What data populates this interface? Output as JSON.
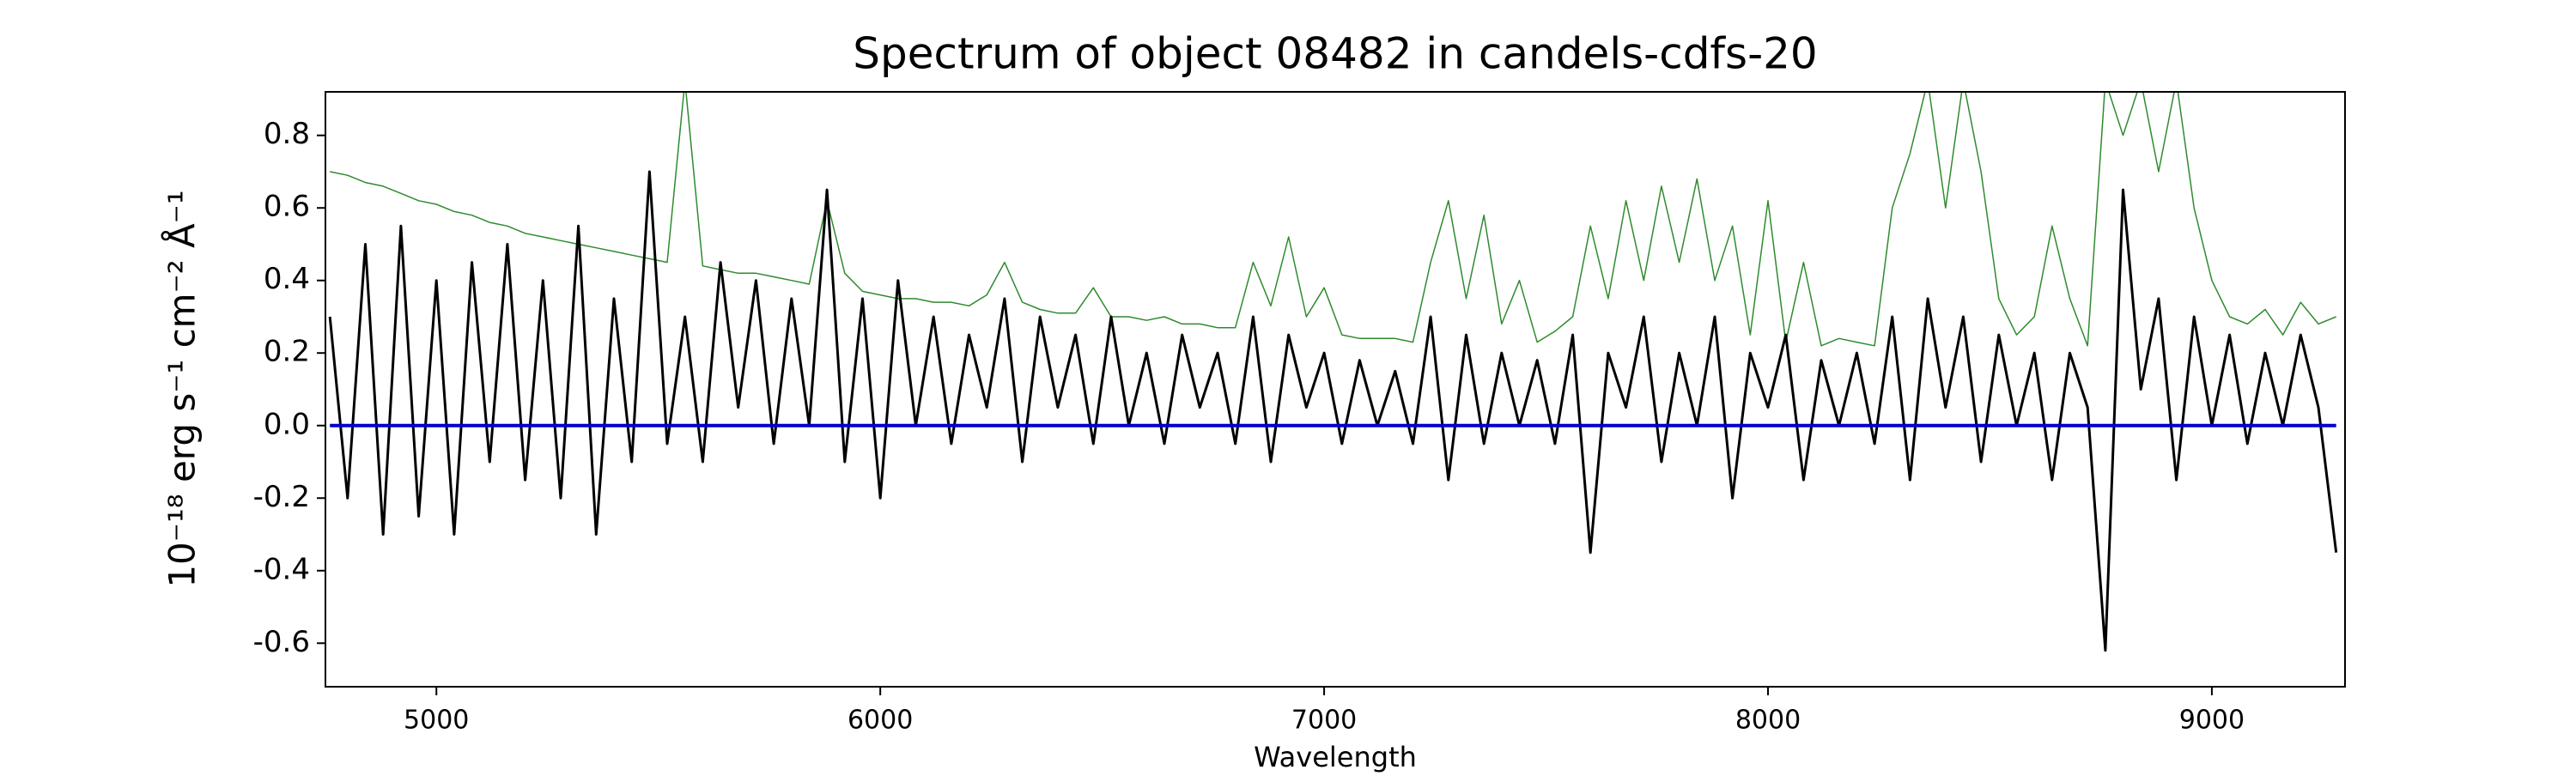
{
  "chart_data": {
    "type": "line",
    "title": "Spectrum of object 08482 in candels-cdfs-20",
    "xlabel": "Wavelength",
    "ylabel": "10⁻¹⁸ erg s⁻¹ cm⁻² Å⁻¹",
    "xlim": [
      4750,
      9300
    ],
    "ylim": [
      -0.72,
      0.92
    ],
    "xticks": [
      5000,
      6000,
      7000,
      8000,
      9000
    ],
    "yticks": [
      -0.6,
      -0.4,
      -0.2,
      {
        "value": 0,
        "label": "0.0"
      },
      0.2,
      0.4,
      0.6,
      0.8
    ],
    "grid": false,
    "x": [
      4760,
      4800,
      4840,
      4880,
      4920,
      4960,
      5000,
      5040,
      5080,
      5120,
      5160,
      5200,
      5240,
      5280,
      5320,
      5360,
      5400,
      5440,
      5480,
      5520,
      5560,
      5600,
      5640,
      5680,
      5720,
      5760,
      5800,
      5840,
      5880,
      5920,
      5960,
      6000,
      6040,
      6080,
      6120,
      6160,
      6200,
      6240,
      6280,
      6320,
      6360,
      6400,
      6440,
      6480,
      6520,
      6560,
      6600,
      6640,
      6680,
      6720,
      6760,
      6800,
      6840,
      6880,
      6920,
      6960,
      7000,
      7040,
      7080,
      7120,
      7160,
      7200,
      7240,
      7280,
      7320,
      7360,
      7400,
      7440,
      7480,
      7520,
      7560,
      7600,
      7640,
      7680,
      7720,
      7760,
      7800,
      7840,
      7880,
      7920,
      7960,
      8000,
      8040,
      8080,
      8120,
      8160,
      8200,
      8240,
      8280,
      8320,
      8360,
      8400,
      8440,
      8480,
      8520,
      8560,
      8600,
      8640,
      8680,
      8720,
      8760,
      8800,
      8840,
      8880,
      8920,
      8960,
      9000,
      9040,
      9080,
      9120,
      9160,
      9200,
      9240,
      9280
    ],
    "series": [
      {
        "color": "#2e8b2e",
        "linewidth": 1.5,
        "values": [
          0.7,
          0.69,
          0.67,
          0.66,
          0.64,
          0.62,
          0.61,
          0.59,
          0.58,
          0.56,
          0.55,
          0.53,
          0.52,
          0.51,
          0.5,
          0.49,
          0.48,
          0.47,
          0.46,
          0.45,
          0.95,
          0.44,
          0.43,
          0.42,
          0.42,
          0.41,
          0.4,
          0.39,
          0.62,
          0.42,
          0.37,
          0.36,
          0.35,
          0.35,
          0.34,
          0.34,
          0.33,
          0.36,
          0.45,
          0.34,
          0.32,
          0.31,
          0.31,
          0.38,
          0.3,
          0.3,
          0.29,
          0.3,
          0.28,
          0.28,
          0.27,
          0.27,
          0.45,
          0.33,
          0.52,
          0.3,
          0.38,
          0.25,
          0.24,
          0.24,
          0.24,
          0.23,
          0.45,
          0.62,
          0.35,
          0.58,
          0.28,
          0.4,
          0.23,
          0.26,
          0.3,
          0.55,
          0.35,
          0.62,
          0.4,
          0.66,
          0.45,
          0.68,
          0.4,
          0.55,
          0.25,
          0.62,
          0.23,
          0.45,
          0.22,
          0.24,
          0.23,
          0.22,
          0.6,
          0.75,
          0.95,
          0.6,
          0.95,
          0.7,
          0.35,
          0.25,
          0.3,
          0.55,
          0.35,
          0.22,
          0.95,
          0.8,
          0.95,
          0.7,
          0.95,
          0.6,
          0.4,
          0.3,
          0.28,
          0.32,
          0.25,
          0.34,
          0.28,
          0.3
        ]
      },
      {
        "color": "#000000",
        "linewidth": 3,
        "values": [
          0.3,
          -0.2,
          0.5,
          -0.3,
          0.55,
          -0.25,
          0.4,
          -0.3,
          0.45,
          -0.1,
          0.5,
          -0.15,
          0.4,
          -0.2,
          0.55,
          -0.3,
          0.35,
          -0.1,
          0.7,
          -0.05,
          0.3,
          -0.1,
          0.45,
          0.05,
          0.4,
          -0.05,
          0.35,
          0.0,
          0.65,
          -0.1,
          0.35,
          -0.2,
          0.4,
          0.0,
          0.3,
          -0.05,
          0.25,
          0.05,
          0.35,
          -0.1,
          0.3,
          0.05,
          0.25,
          -0.05,
          0.3,
          0.0,
          0.2,
          -0.05,
          0.25,
          0.05,
          0.2,
          -0.05,
          0.3,
          -0.1,
          0.25,
          0.05,
          0.2,
          -0.05,
          0.18,
          0.0,
          0.15,
          -0.05,
          0.3,
          -0.15,
          0.25,
          -0.05,
          0.2,
          0.0,
          0.18,
          -0.05,
          0.25,
          -0.35,
          0.2,
          0.05,
          0.3,
          -0.1,
          0.2,
          0.0,
          0.3,
          -0.2,
          0.2,
          0.05,
          0.25,
          -0.15,
          0.18,
          0.0,
          0.2,
          -0.05,
          0.3,
          -0.15,
          0.35,
          0.05,
          0.3,
          -0.1,
          0.25,
          0.0,
          0.2,
          -0.15,
          0.2,
          0.05,
          -0.62,
          0.65,
          0.1,
          0.35,
          -0.15,
          0.3,
          0.0,
          0.25,
          -0.05,
          0.2,
          0.0,
          0.25,
          0.05,
          -0.35
        ]
      },
      {
        "color": "#0000cc",
        "linewidth": 4,
        "values": [
          0,
          0,
          0,
          0,
          0,
          0,
          0,
          0,
          0,
          0,
          0,
          0,
          0,
          0,
          0,
          0,
          0,
          0,
          0,
          0,
          0,
          0,
          0,
          0,
          0,
          0,
          0,
          0,
          0,
          0,
          0,
          0,
          0,
          0,
          0,
          0,
          0,
          0,
          0,
          0,
          0,
          0,
          0,
          0,
          0,
          0,
          0,
          0,
          0,
          0,
          0,
          0,
          0,
          0,
          0,
          0,
          0,
          0,
          0,
          0,
          0,
          0,
          0,
          0,
          0,
          0,
          0,
          0,
          0,
          0,
          0,
          0,
          0,
          0,
          0,
          0,
          0,
          0,
          0,
          0,
          0,
          0,
          0,
          0,
          0,
          0,
          0,
          0,
          0,
          0,
          0,
          0,
          0,
          0,
          0,
          0,
          0,
          0,
          0,
          0,
          0,
          0,
          0,
          0,
          0,
          0,
          0,
          0,
          0,
          0,
          0,
          0,
          0,
          0
        ]
      }
    ]
  }
}
